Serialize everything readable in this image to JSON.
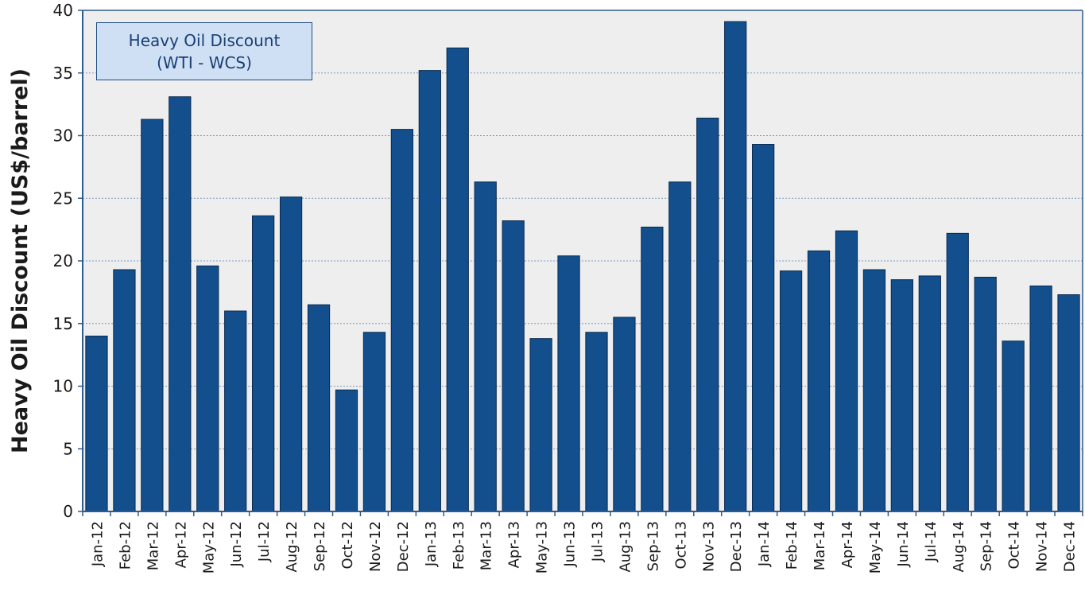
{
  "chart_data": {
    "type": "bar",
    "title": "",
    "xlabel": "",
    "ylabel": "Heavy Oil Discount (US$/barrel)",
    "ylim": [
      0,
      40
    ],
    "yticks": [
      0,
      5,
      10,
      15,
      20,
      25,
      30,
      35,
      40
    ],
    "grid": "horizontal dotted",
    "legend": {
      "line1": "Heavy Oil Discount",
      "line2": "(WTI - WCS)",
      "placement": "top-left"
    },
    "categories": [
      "Jan-12",
      "Feb-12",
      "Mar-12",
      "Apr-12",
      "May-12",
      "Jun-12",
      "Jul-12",
      "Aug-12",
      "Sep-12",
      "Oct-12",
      "Nov-12",
      "Dec-12",
      "Jan-13",
      "Feb-13",
      "Mar-13",
      "Apr-13",
      "May-13",
      "Jun-13",
      "Jul-13",
      "Aug-13",
      "Sep-13",
      "Oct-13",
      "Nov-13",
      "Dec-13",
      "Jan-14",
      "Feb-14",
      "Mar-14",
      "Apr-14",
      "May-14",
      "Jun-14",
      "Jul-14",
      "Aug-14",
      "Sep-14",
      "Oct-14",
      "Nov-14",
      "Dec-14"
    ],
    "values": [
      14.0,
      19.3,
      31.3,
      33.1,
      19.6,
      16.0,
      23.6,
      25.1,
      16.5,
      9.7,
      14.3,
      30.5,
      35.2,
      37.0,
      26.3,
      23.2,
      13.8,
      20.4,
      14.3,
      15.5,
      22.7,
      26.3,
      31.4,
      39.1,
      29.3,
      19.2,
      20.8,
      22.4,
      19.3,
      18.5,
      18.8,
      22.2,
      18.7,
      13.6,
      18.0,
      17.3
    ],
    "colors": {
      "bar": "#124f8c",
      "bar_border": "#0b2b50",
      "plot_bg": "#eeeeee",
      "axis": "#2e5c8e",
      "grid": "#7a9cc4",
      "text": "#1a1a1a",
      "legend_bg": "#cfe0f4",
      "legend_text": "#1a3f73"
    }
  }
}
